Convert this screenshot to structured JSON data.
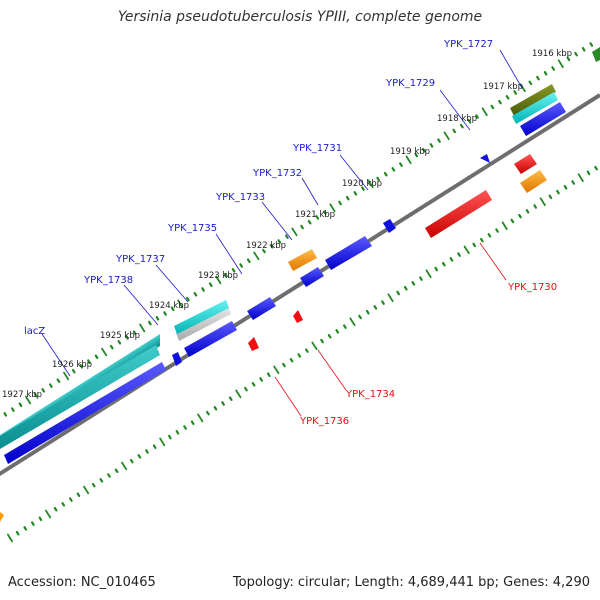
{
  "title": "Yersinia pseudotuberculosis YPIII, complete genome",
  "footer": {
    "accession": "Accession: NC_010465",
    "summary": "Topology: circular; Length: 4,689,441 bp; Genes: 4,290"
  },
  "scale_labels": [
    "1916 kbp",
    "1917 kbp",
    "1918 kbp",
    "1919 kbp",
    "1920 kbp",
    "1921 kbp",
    "1922 kbp",
    "1923 kbp",
    "1924 kbp",
    "1925 kbp",
    "1926 kbp",
    "1927 kbp"
  ],
  "gene_labels": {
    "top": [
      "YPK_1727",
      "YPK_1729",
      "YPK_1731",
      "YPK_1732",
      "YPK_1733",
      "YPK_1735",
      "YPK_1737",
      "YPK_1738",
      "lacZ"
    ],
    "bottom": [
      "YPK_1730",
      "YPK_1734",
      "YPK_1736"
    ]
  },
  "colors": {
    "forward_cds": "#1010e0",
    "reverse_cds": "#ee1111",
    "highlight_orange": "#ff9900",
    "highlight_cyan": "#22dddd",
    "backbone": "#777777",
    "tick_green": "#228822"
  }
}
